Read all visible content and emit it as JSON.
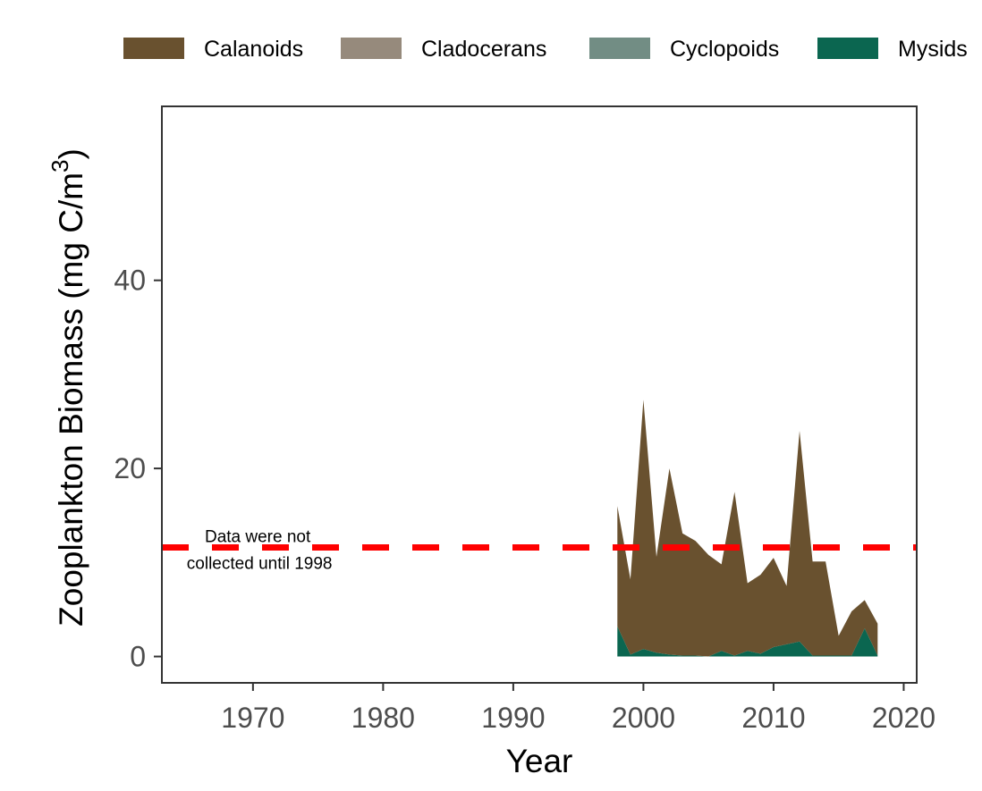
{
  "chart_data": {
    "type": "area",
    "stacked": true,
    "xlabel": "Year",
    "ylabel_main": "Zooplankton Biomass (mg C/m",
    "ylabel_sup": "3",
    "ylabel_close": ")",
    "xlim": [
      1963,
      2021
    ],
    "ylim": [
      -2.8,
      58.5
    ],
    "x_ticks": [
      1970,
      1980,
      1990,
      2000,
      2010,
      2020
    ],
    "y_ticks": [
      0,
      20,
      40
    ],
    "grid": false,
    "legend_position": "top",
    "reference_line": {
      "y": 11.6,
      "color": "#ff0000",
      "style": "dashed"
    },
    "annotation": {
      "lines": [
        "Data were not",
        "collected until 1998"
      ],
      "x": 1970.5,
      "y": 10
    },
    "x": [
      1998,
      1999,
      2000,
      2001,
      2002,
      2003,
      2004,
      2005,
      2006,
      2007,
      2008,
      2009,
      2010,
      2011,
      2012,
      2013,
      2014,
      2015,
      2016,
      2017,
      2018
    ],
    "series": [
      {
        "name": "Mysids",
        "color": "#0b6650",
        "values": [
          3.2,
          0.2,
          0.8,
          0.4,
          0.2,
          0.1,
          0.1,
          0.0,
          0.6,
          0.1,
          0.6,
          0.3,
          1.0,
          1.3,
          1.6,
          0.1,
          0.1,
          0.1,
          0.1,
          3.0,
          0.1
        ]
      },
      {
        "name": "Cyclopoids",
        "color": "#728d84",
        "values": [
          0,
          0,
          0,
          0,
          0,
          0,
          0,
          0,
          0,
          0,
          0,
          0,
          0,
          0,
          0,
          0,
          0,
          0,
          0,
          0,
          0
        ]
      },
      {
        "name": "Cladocerans",
        "color": "#968a7c",
        "values": [
          0,
          0,
          0,
          0,
          0,
          0,
          0,
          0,
          0,
          0,
          0,
          0,
          0,
          0,
          0,
          0,
          0,
          0,
          0,
          0,
          0
        ]
      },
      {
        "name": "Calanoids",
        "color": "#69512f",
        "values": [
          12.8,
          8.0,
          26.5,
          10.2,
          19.8,
          13.0,
          12.2,
          10.8,
          9.2,
          17.4,
          7.2,
          8.4,
          9.5,
          6.2,
          22.4,
          10.0,
          10.0,
          2.1,
          4.7,
          3.0,
          3.4
        ]
      }
    ],
    "legend_order": [
      "Calanoids",
      "Cladocerans",
      "Cyclopoids",
      "Mysids"
    ]
  }
}
